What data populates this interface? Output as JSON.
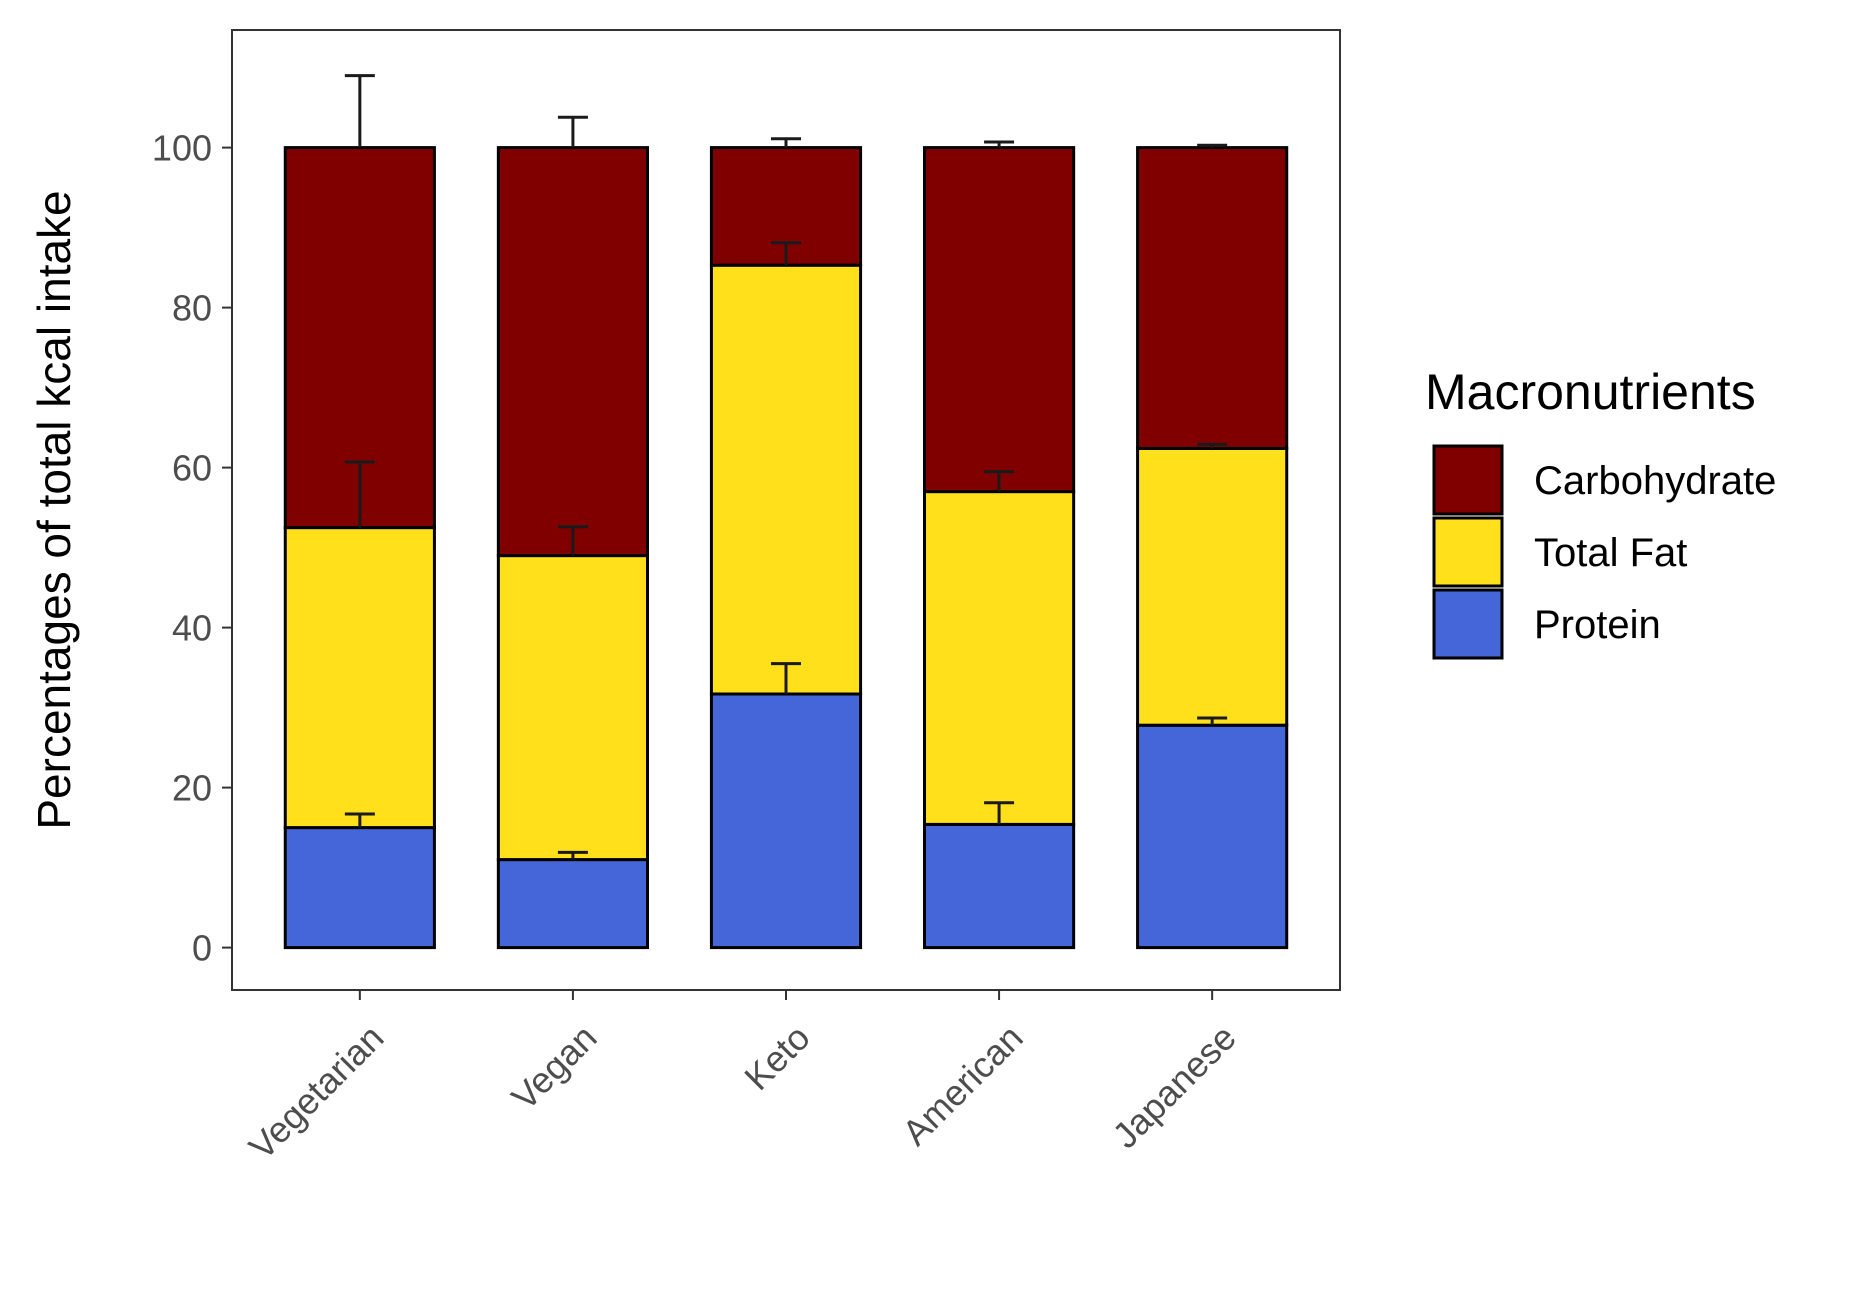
{
  "chart_data": {
    "type": "bar",
    "stacked": true,
    "categories": [
      "Vegetarian",
      "Vegan",
      "Keto",
      "American",
      "Japanese"
    ],
    "series": [
      {
        "name": "Protein",
        "values": [
          15,
          11,
          31.7,
          15.4,
          27.8
        ],
        "errors": [
          1.7,
          0.9,
          3.8,
          2.7,
          0.9
        ]
      },
      {
        "name": "Total Fat",
        "values": [
          37.5,
          38,
          53.6,
          41.6,
          34.6
        ],
        "errors": [
          8.2,
          3.6,
          2.8,
          2.5,
          0.5
        ]
      },
      {
        "name": "Carbohydrate",
        "values": [
          47.5,
          51,
          14.7,
          43,
          37.6
        ],
        "errors": [
          9,
          3.8,
          1.1,
          0.7,
          0.3
        ]
      }
    ],
    "title": "",
    "xlabel": "",
    "ylabel": "Percentages of total kcal intake",
    "ylim": [
      -5.3,
      114.7
    ],
    "yticks": [
      0,
      20,
      40,
      60,
      80,
      100
    ],
    "legend": {
      "title": "Macronutrients",
      "position": "right",
      "entries": [
        "Carbohydrate",
        "Total Fat",
        "Protein"
      ]
    },
    "colors": {
      "Carbohydrate": "#800000",
      "Total Fat": "#FFE01A",
      "Protein": "#4466D9"
    },
    "grid": false
  }
}
